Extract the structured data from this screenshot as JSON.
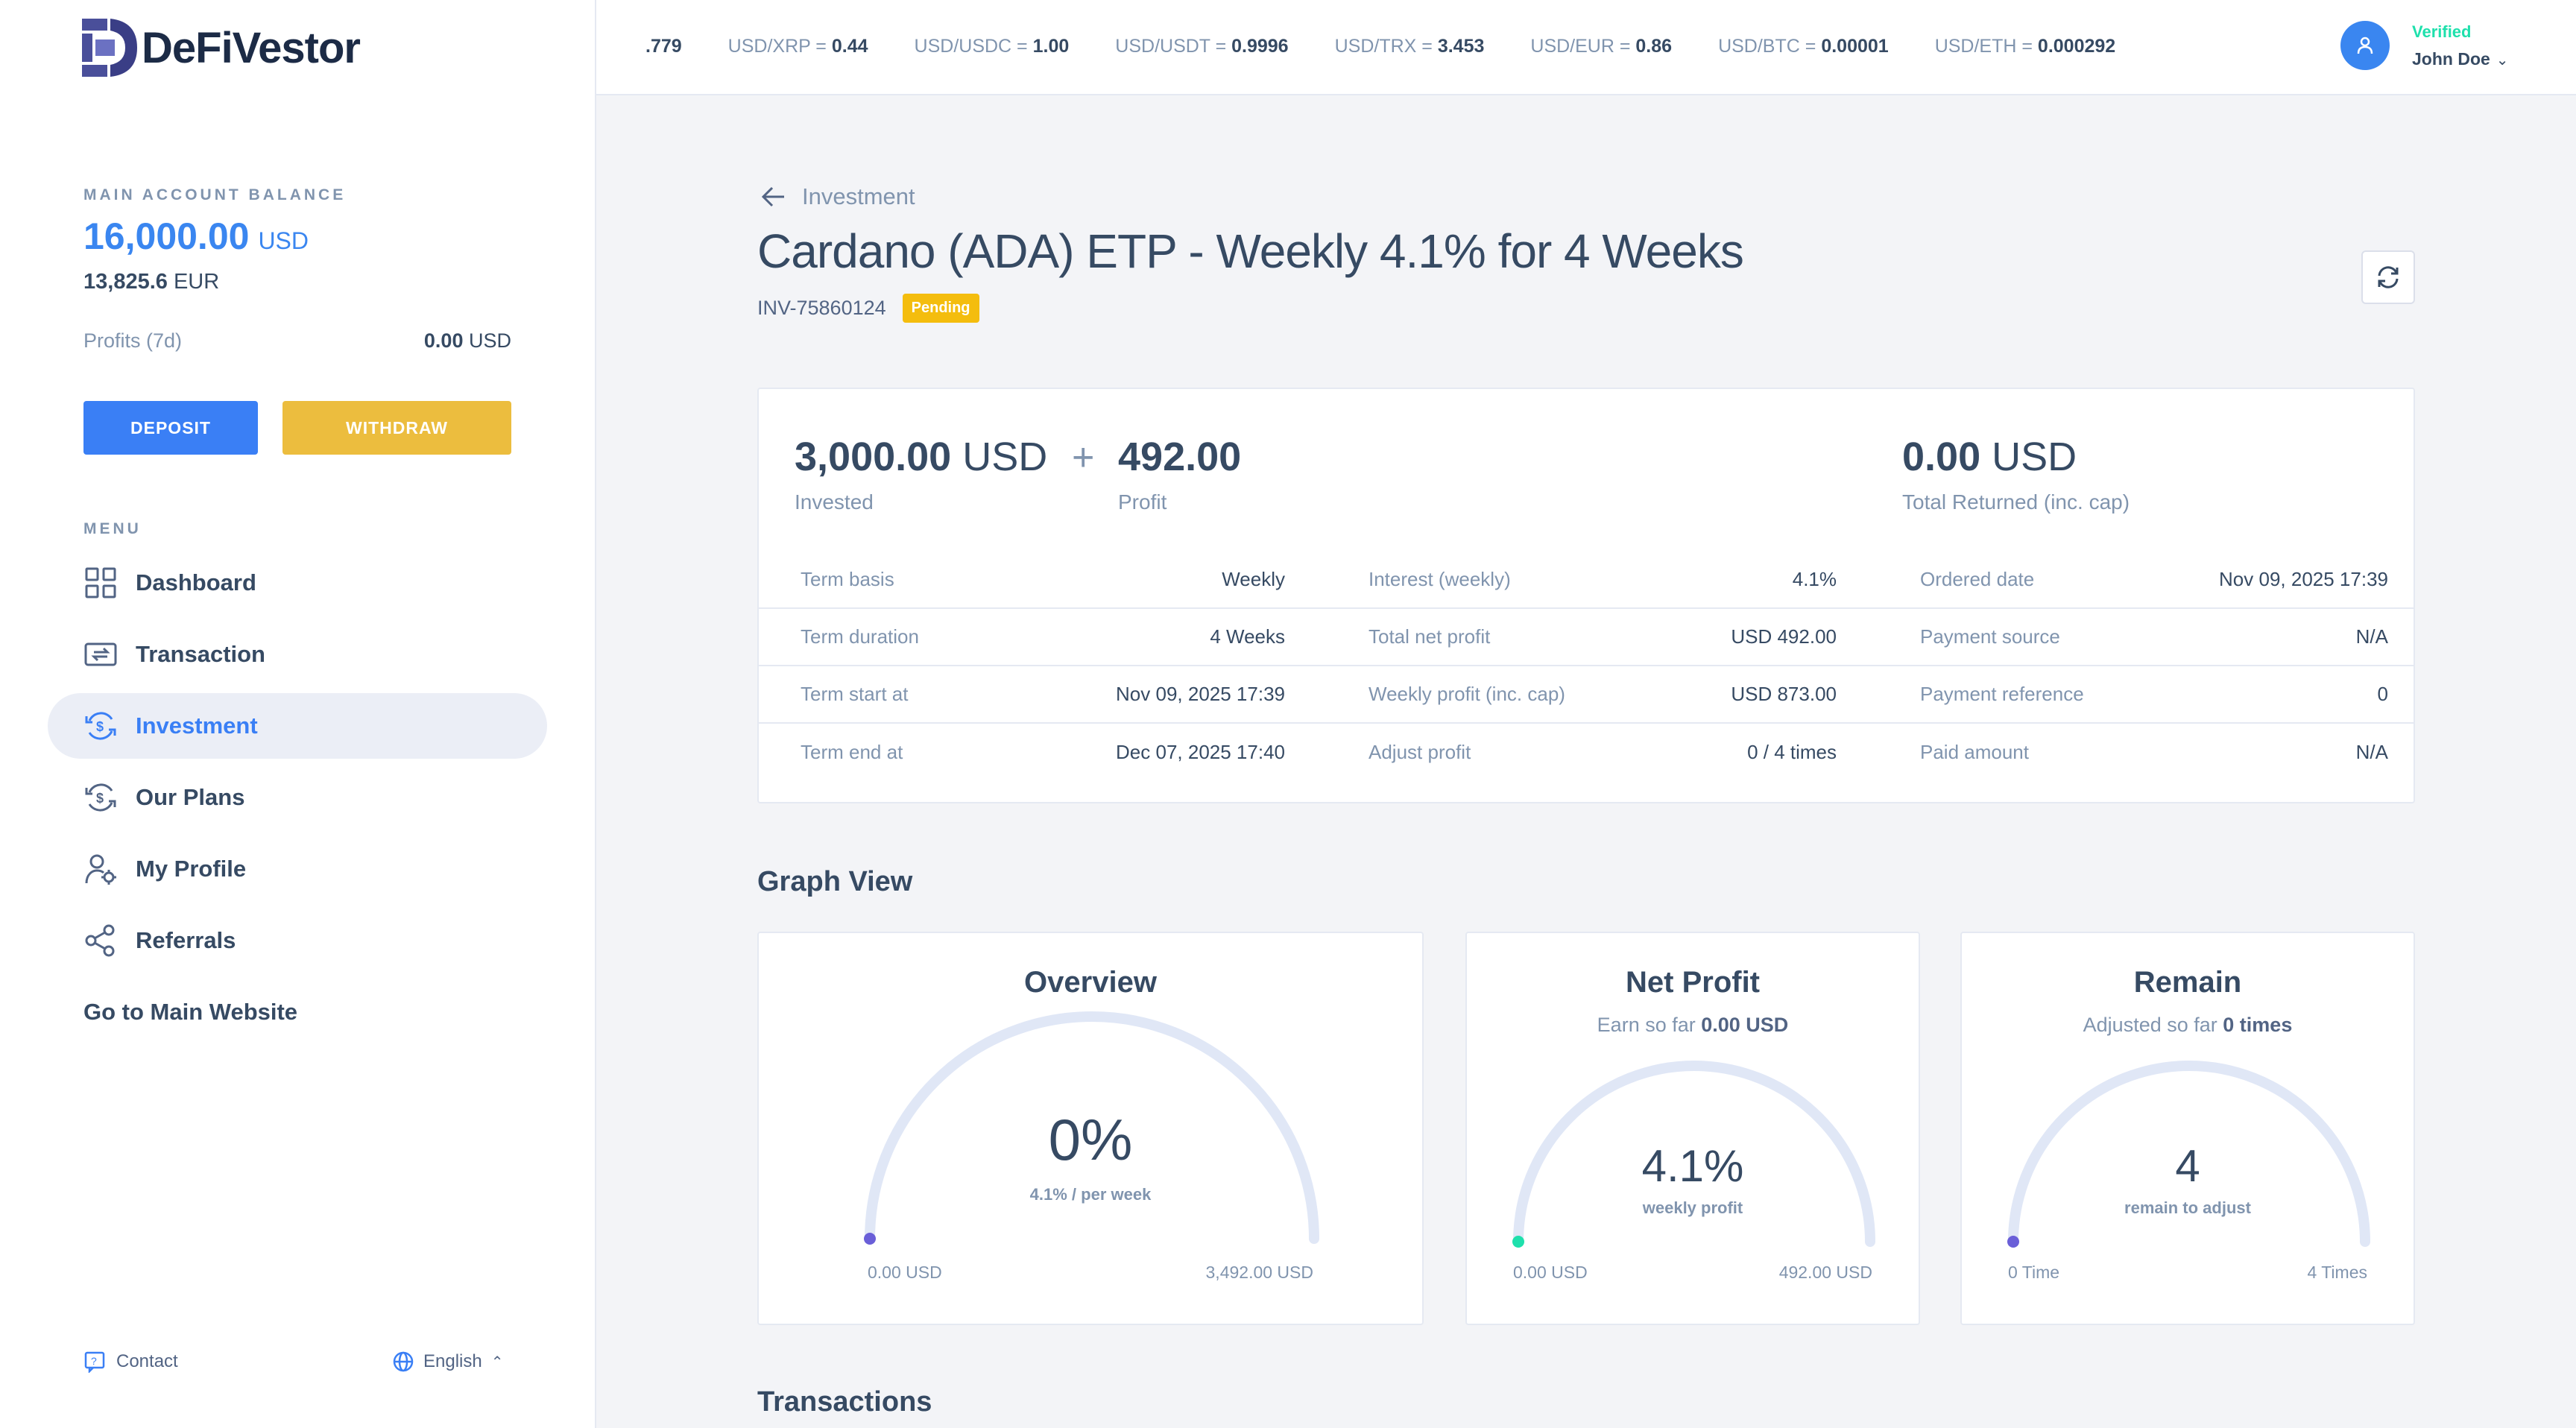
{
  "brand": {
    "name": "DeFiVestor"
  },
  "balance": {
    "label": "MAIN ACCOUNT BALANCE",
    "usd_amount": "16,000.00",
    "usd_currency": "USD",
    "eur_amount": "13,825.6",
    "eur_currency": "EUR",
    "profits_label": "Profits (7d)",
    "profits_value": "0.00",
    "profits_currency": "USD"
  },
  "actions": {
    "deposit": "DEPOSIT",
    "withdraw": "WITHDRAW"
  },
  "menu": {
    "label": "MENU",
    "items": [
      {
        "label": "Dashboard",
        "icon": "dashboard-icon",
        "active": false
      },
      {
        "label": "Transaction",
        "icon": "transaction-icon",
        "active": false
      },
      {
        "label": "Investment",
        "icon": "investment-icon",
        "active": true
      },
      {
        "label": "Our Plans",
        "icon": "plans-icon",
        "active": false
      },
      {
        "label": "My Profile",
        "icon": "profile-icon",
        "active": false
      },
      {
        "label": "Referrals",
        "icon": "share-icon",
        "active": false
      }
    ],
    "main_site": "Go to Main Website"
  },
  "footer": {
    "contact": "Contact",
    "language": "English"
  },
  "ticker": [
    {
      "pair": "",
      "value": ".779"
    },
    {
      "pair": "USD/XRP",
      "value": "0.44"
    },
    {
      "pair": "USD/USDC",
      "value": "1.00"
    },
    {
      "pair": "USD/USDT",
      "value": "0.9996"
    },
    {
      "pair": "USD/TRX",
      "value": "3.453"
    },
    {
      "pair": "USD/EUR",
      "value": "0.86"
    },
    {
      "pair": "USD/BTC",
      "value": "0.00001"
    },
    {
      "pair": "USD/ETH",
      "value": "0.000292"
    }
  ],
  "user": {
    "status": "Verified",
    "name": "John Doe"
  },
  "page": {
    "back_label": "Investment",
    "title": "Cardano (ADA) ETP - Weekly 4.1% for 4 Weeks",
    "invoice_id": "INV-75860124",
    "status_badge": "Pending"
  },
  "summary": {
    "invested_amount": "3,000.00",
    "invested_currency": "USD",
    "invested_label": "Invested",
    "plus": "+",
    "profit_amount": "492.00",
    "profit_label": "Profit",
    "returned_amount": "0.00",
    "returned_currency": "USD",
    "returned_label": "Total Returned (inc. cap)"
  },
  "details": [
    [
      {
        "k": "Term basis",
        "v": "Weekly"
      },
      {
        "k": "Interest (weekly)",
        "v": "4.1%"
      },
      {
        "k": "Ordered date",
        "v": "Nov 09, 2025 17:39"
      }
    ],
    [
      {
        "k": "Term duration",
        "v": "4 Weeks"
      },
      {
        "k": "Total net profit",
        "v": "USD 492.00"
      },
      {
        "k": "Payment source",
        "v": "N/A"
      }
    ],
    [
      {
        "k": "Term start at",
        "v": "Nov 09, 2025 17:39"
      },
      {
        "k": "Weekly profit (inc. cap)",
        "v": "USD 873.00"
      },
      {
        "k": "Payment reference",
        "v": "0"
      }
    ],
    [
      {
        "k": "Term end at",
        "v": "Dec 07, 2025 17:40"
      },
      {
        "k": "Adjust profit",
        "v": "0 / 4 times"
      },
      {
        "k": "Paid amount",
        "v": "N/A"
      }
    ]
  ],
  "graph": {
    "section_title": "Graph View",
    "overview": {
      "title": "Overview",
      "value": "0%",
      "sub": "4.1% / per week",
      "min": "0.00 USD",
      "max": "3,492.00 USD",
      "progress": 0,
      "dot_color": "#6a5fd8"
    },
    "net_profit": {
      "title": "Net Profit",
      "subtitle_prefix": "Earn so far",
      "subtitle_value": "0.00 USD",
      "value": "4.1%",
      "sub": "weekly profit",
      "min": "0.00 USD",
      "max": "492.00 USD",
      "progress": 0,
      "dot_color": "#1ee0ac"
    },
    "remain": {
      "title": "Remain",
      "subtitle_prefix": "Adjusted so far",
      "subtitle_value": "0 times",
      "value": "4",
      "sub": "remain to adjust",
      "min": "0 Time",
      "max": "4 Times",
      "progress": 0,
      "dot_color": "#6a5fd8"
    }
  },
  "transactions": {
    "title": "Transactions"
  },
  "colors": {
    "accent": "#3a7ff5",
    "warning": "#ecbd3e",
    "gauge_track": "#e0e7f6"
  }
}
